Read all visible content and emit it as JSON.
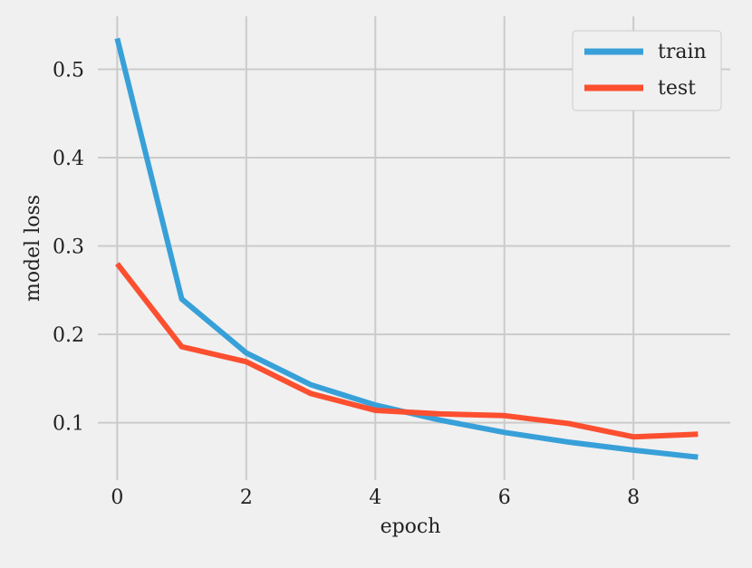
{
  "chart_data": {
    "type": "line",
    "title": "",
    "xlabel": "epoch",
    "ylabel": "model loss",
    "x": [
      0,
      1,
      2,
      3,
      4,
      5,
      6,
      7,
      8,
      9
    ],
    "xlim": [
      -0.3,
      9.5
    ],
    "ylim": [
      0.035,
      0.56
    ],
    "x_ticks": [
      0,
      2,
      4,
      6,
      8
    ],
    "y_ticks": [
      0.1,
      0.2,
      0.3,
      0.4,
      0.5
    ],
    "x_tick_labels": [
      "0",
      "2",
      "4",
      "6",
      "8"
    ],
    "y_tick_labels": [
      "0.1",
      "0.2",
      "0.3",
      "0.4",
      "0.5"
    ],
    "grid": true,
    "legend_position": "top-right",
    "series": [
      {
        "name": "train",
        "color": "#38a0d8",
        "values": [
          0.535,
          0.24,
          0.179,
          0.143,
          0.12,
          0.103,
          0.089,
          0.078,
          0.069,
          0.061
        ]
      },
      {
        "name": "test",
        "color": "#fc4f30",
        "values": [
          0.28,
          0.186,
          0.169,
          0.133,
          0.114,
          0.11,
          0.108,
          0.099,
          0.084,
          0.087
        ]
      }
    ]
  },
  "colors": {
    "background": "#f0f0f0",
    "grid": "#cbcbcb",
    "legend_border": "#cccccc"
  }
}
